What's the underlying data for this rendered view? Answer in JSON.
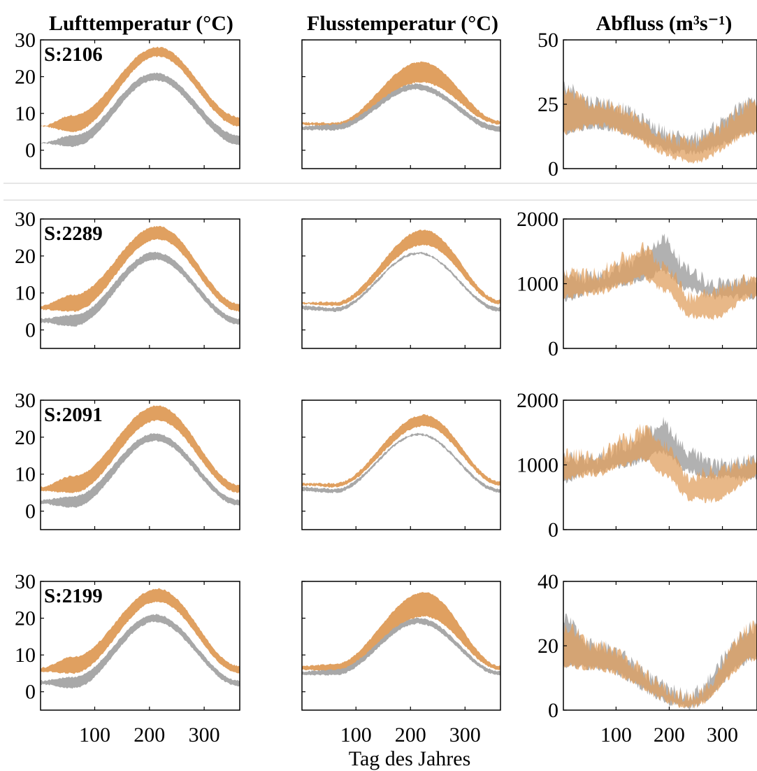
{
  "column_titles": {
    "air": "Lufttemperatur (°C)",
    "water": "Flusstemperatur (°C)",
    "flow": "Abfluss (m³s⁻¹)"
  },
  "xlabel": "Tag des Jahres",
  "colors": {
    "future": "#E0A060",
    "future_dark": "#C8823C",
    "present": "#A8A8A8",
    "overlap": "#A87840"
  },
  "chart_data": [
    {
      "type": "area",
      "station": "S:2106",
      "variable": "Lufttemperatur",
      "xlim": [
        1,
        365
      ],
      "xticks": [
        100,
        200,
        300
      ],
      "ylim": [
        -5,
        30
      ],
      "yticks": [
        0,
        10,
        20,
        30
      ],
      "series": [
        {
          "color": "orange",
          "peak_day": 215,
          "low": [
            6.5,
            5,
            25.5,
            6.5
          ],
          "high": [
            6.5,
            9.5,
            28,
            9
          ]
        },
        {
          "color": "gray",
          "peak_day": 210,
          "low": [
            2,
            1,
            19,
            1.5
          ],
          "high": [
            2,
            4,
            21,
            4
          ]
        }
      ]
    },
    {
      "type": "area",
      "station": "S:2106",
      "variable": "Flusstemperatur",
      "xlim": [
        1,
        365
      ],
      "xticks": [
        100,
        200,
        300
      ],
      "ylim": [
        -5,
        30
      ],
      "yticks": [
        0,
        10,
        20,
        30
      ],
      "series": [
        {
          "color": "orange",
          "peak_day": 220,
          "low": [
            7,
            6.5,
            18.5,
            7
          ],
          "high": [
            7.5,
            7.5,
            24,
            8
          ]
        },
        {
          "color": "gray",
          "peak_day": 210,
          "low": [
            5.5,
            5.5,
            16.5,
            5
          ],
          "high": [
            6.5,
            7,
            18,
            6.5
          ]
        }
      ]
    },
    {
      "type": "area",
      "station": "S:2106",
      "variable": "Abfluss",
      "xlim": [
        1,
        365
      ],
      "xticks": [
        100,
        200,
        300
      ],
      "ylim": [
        0,
        50
      ],
      "yticks": [
        0,
        25,
        50
      ],
      "series": [
        {
          "color": "gray",
          "min_day": 240,
          "low": [
            14,
            16,
            6,
            14
          ],
          "high": [
            32,
            26,
            12,
            26
          ]
        },
        {
          "color": "orange",
          "min_day": 245,
          "low": [
            14,
            17,
            3,
            14
          ],
          "high": [
            30,
            25,
            10,
            25
          ]
        }
      ]
    },
    {
      "type": "area",
      "station": "S:2289",
      "variable": "Lufttemperatur",
      "xlim": [
        1,
        365
      ],
      "xticks": [
        100,
        200,
        300
      ],
      "ylim": [
        -5,
        30
      ],
      "yticks": [
        0,
        10,
        20,
        30
      ],
      "series": [
        {
          "color": "orange",
          "peak_day": 215,
          "low": [
            5.5,
            5,
            24.5,
            5
          ],
          "high": [
            6.5,
            9.5,
            28,
            7
          ]
        },
        {
          "color": "gray",
          "peak_day": 210,
          "low": [
            2,
            1,
            19,
            1.5
          ],
          "high": [
            3,
            4,
            21,
            3
          ]
        }
      ]
    },
    {
      "type": "area",
      "station": "S:2289",
      "variable": "Flusstemperatur",
      "xlim": [
        1,
        365
      ],
      "xticks": [
        100,
        200,
        300
      ],
      "ylim": [
        -5,
        30
      ],
      "yticks": [
        0,
        10,
        20,
        30
      ],
      "series": [
        {
          "color": "orange",
          "peak_day": 225,
          "low": [
            7,
            6.5,
            23,
            7
          ],
          "high": [
            7.5,
            7.5,
            27,
            8
          ]
        },
        {
          "color": "gray",
          "peak_day": 215,
          "low": [
            5.5,
            5,
            20.5,
            5
          ],
          "high": [
            6.5,
            6,
            21,
            6
          ]
        }
      ]
    },
    {
      "type": "area",
      "station": "S:2289",
      "variable": "Abfluss",
      "xlim": [
        1,
        365
      ],
      "xticks": [
        100,
        200,
        300
      ],
      "ylim": [
        0,
        2000
      ],
      "yticks": [
        0,
        1000,
        2000
      ],
      "series": [
        {
          "color": "gray",
          "x": [
            1,
            60,
            120,
            160,
            185,
            240,
            280,
            365
          ],
          "low": [
            750,
            900,
            1000,
            1100,
            1200,
            900,
            800,
            800
          ],
          "high": [
            1100,
            1100,
            1300,
            1500,
            1700,
            1200,
            1000,
            1050
          ]
        },
        {
          "color": "orange",
          "x": [
            1,
            60,
            120,
            150,
            190,
            240,
            280,
            365
          ],
          "low": [
            800,
            850,
            1000,
            1100,
            900,
            500,
            480,
            820
          ],
          "high": [
            1150,
            1150,
            1400,
            1550,
            1300,
            800,
            900,
            1100
          ]
        }
      ]
    },
    {
      "type": "area",
      "station": "S:2091",
      "variable": "Lufttemperatur",
      "xlim": [
        1,
        365
      ],
      "xticks": [
        100,
        200,
        300
      ],
      "ylim": [
        -5,
        30
      ],
      "yticks": [
        0,
        10,
        20,
        30
      ],
      "series": [
        {
          "color": "orange",
          "peak_day": 215,
          "low": [
            5.5,
            5,
            24.5,
            5
          ],
          "high": [
            6.5,
            9.5,
            28.5,
            7
          ]
        },
        {
          "color": "gray",
          "peak_day": 210,
          "low": [
            2,
            1,
            19,
            1.5
          ],
          "high": [
            3,
            4,
            21,
            3
          ]
        }
      ]
    },
    {
      "type": "area",
      "station": "S:2091",
      "variable": "Flusstemperatur",
      "xlim": [
        1,
        365
      ],
      "xticks": [
        100,
        200,
        300
      ],
      "ylim": [
        -5,
        30
      ],
      "yticks": [
        0,
        10,
        20,
        30
      ],
      "series": [
        {
          "color": "orange",
          "peak_day": 225,
          "low": [
            7,
            6.5,
            23,
            7
          ],
          "high": [
            7.5,
            7.5,
            26,
            8
          ]
        },
        {
          "color": "gray",
          "peak_day": 215,
          "low": [
            5.5,
            5,
            20.5,
            5
          ],
          "high": [
            6.5,
            6,
            21,
            6
          ]
        }
      ]
    },
    {
      "type": "area",
      "station": "S:2091",
      "variable": "Abfluss",
      "xlim": [
        1,
        365
      ],
      "xticks": [
        100,
        200,
        300
      ],
      "ylim": [
        0,
        2000
      ],
      "yticks": [
        0,
        1000,
        2000
      ],
      "series": [
        {
          "color": "gray",
          "x": [
            1,
            60,
            120,
            160,
            185,
            240,
            280,
            365
          ],
          "low": [
            750,
            900,
            1000,
            1100,
            1200,
            900,
            800,
            800
          ],
          "high": [
            1100,
            1100,
            1300,
            1500,
            1650,
            1200,
            1000,
            1050
          ]
        },
        {
          "color": "orange",
          "x": [
            1,
            60,
            120,
            150,
            190,
            240,
            280,
            365
          ],
          "low": [
            800,
            850,
            1000,
            1100,
            850,
            480,
            450,
            820
          ],
          "high": [
            1150,
            1150,
            1400,
            1550,
            1300,
            800,
            900,
            1100
          ]
        }
      ]
    },
    {
      "type": "area",
      "station": "S:2199",
      "variable": "Lufttemperatur",
      "xlim": [
        1,
        365
      ],
      "xticks": [
        100,
        200,
        300
      ],
      "ylim": [
        -5,
        30
      ],
      "yticks": [
        0,
        10,
        20,
        30
      ],
      "series": [
        {
          "color": "orange",
          "peak_day": 215,
          "low": [
            5.5,
            5,
            24.5,
            5
          ],
          "high": [
            6.5,
            9.5,
            28,
            7
          ]
        },
        {
          "color": "gray",
          "peak_day": 210,
          "low": [
            2,
            1,
            19,
            1.5
          ],
          "high": [
            3,
            4,
            21,
            3
          ]
        }
      ]
    },
    {
      "type": "area",
      "station": "S:2199",
      "variable": "Flusstemperatur",
      "xlim": [
        1,
        365
      ],
      "xticks": [
        100,
        200,
        300
      ],
      "ylim": [
        -5,
        30
      ],
      "yticks": [
        0,
        10,
        20,
        30
      ],
      "series": [
        {
          "color": "orange",
          "peak_day": 225,
          "low": [
            6,
            5.5,
            20.5,
            6
          ],
          "high": [
            7,
            7.5,
            27,
            7
          ]
        },
        {
          "color": "gray",
          "peak_day": 215,
          "low": [
            4.5,
            4.5,
            18.5,
            4.5
          ],
          "high": [
            5.5,
            6,
            20,
            5.5
          ]
        }
      ]
    },
    {
      "type": "area",
      "station": "S:2199",
      "variable": "Abfluss",
      "xlim": [
        1,
        365
      ],
      "xticks": [
        100,
        200,
        300
      ],
      "ylim": [
        0,
        40
      ],
      "yticks": [
        0,
        20,
        40
      ],
      "series": [
        {
          "color": "gray",
          "min_day": 235,
          "low": [
            14,
            13,
            1,
            16
          ],
          "high": [
            28,
            20,
            5,
            26
          ]
        },
        {
          "color": "orange",
          "min_day": 240,
          "low": [
            14,
            13,
            1,
            16
          ],
          "high": [
            26,
            20,
            4,
            26
          ]
        }
      ]
    }
  ]
}
